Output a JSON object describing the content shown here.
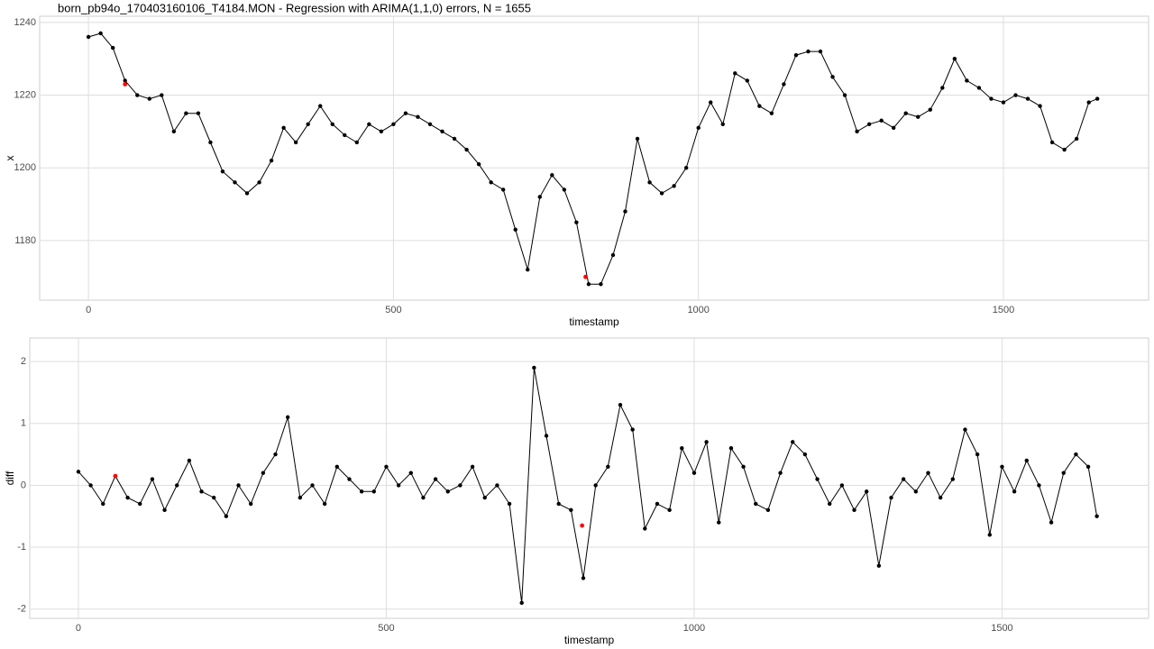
{
  "chart_data": [
    {
      "type": "line",
      "title": "born_pb94o_170403160106_T4184.MON - Regression with ARIMA(1,1,0) errors, N = 1655",
      "x_label": "timestamp",
      "y_label": "x",
      "x": [
        0,
        20,
        40,
        60,
        80,
        100,
        120,
        140,
        160,
        180,
        200,
        220,
        240,
        260,
        280,
        300,
        320,
        340,
        360,
        380,
        400,
        420,
        440,
        460,
        480,
        500,
        520,
        540,
        560,
        580,
        600,
        620,
        640,
        660,
        680,
        700,
        720,
        740,
        760,
        780,
        800,
        820,
        840,
        860,
        880,
        900,
        920,
        940,
        960,
        980,
        1000,
        1020,
        1040,
        1060,
        1080,
        1100,
        1120,
        1140,
        1160,
        1180,
        1200,
        1220,
        1240,
        1260,
        1280,
        1300,
        1320,
        1340,
        1360,
        1380,
        1400,
        1420,
        1440,
        1460,
        1480,
        1500,
        1520,
        1540,
        1560,
        1580,
        1600,
        1620,
        1640,
        1654
      ],
      "values": [
        1236,
        1237,
        1233,
        1224,
        1220,
        1219,
        1220,
        1210,
        1215,
        1215,
        1207,
        1199,
        1196,
        1193,
        1196,
        1202,
        1211,
        1207,
        1212,
        1217,
        1212,
        1209,
        1207,
        1212,
        1210,
        1212,
        1215,
        1214,
        1212,
        1210,
        1208,
        1205,
        1201,
        1196,
        1194,
        1183,
        1172,
        1192,
        1198,
        1194,
        1185,
        1168,
        1168,
        1176,
        1188,
        1208,
        1196,
        1193,
        1195,
        1200,
        1211,
        1218,
        1212,
        1226,
        1224,
        1217,
        1215,
        1223,
        1231,
        1232,
        1232,
        1225,
        1220,
        1210,
        1212,
        1213,
        1211,
        1215,
        1214,
        1216,
        1222,
        1230,
        1224,
        1222,
        1219,
        1218,
        1220,
        1219,
        1217,
        1207,
        1205,
        1208,
        1218,
        1219
      ],
      "color": "#000000",
      "highlight_x": [
        60,
        815
      ],
      "highlight_values": [
        1223,
        1170
      ],
      "highlight_color": "#ff0000",
      "xlim": [
        -80,
        1738
      ],
      "ylim": [
        1163.6,
        1241.7
      ],
      "xticks": [
        0,
        500,
        1000,
        1500
      ],
      "yticks": [
        1180,
        1200,
        1220,
        1240
      ],
      "grid": true
    },
    {
      "type": "line",
      "x_label": "timestamp",
      "y_label": "diff",
      "x": [
        0,
        20,
        40,
        60,
        80,
        100,
        120,
        140,
        160,
        180,
        200,
        220,
        240,
        260,
        280,
        300,
        320,
        340,
        360,
        380,
        400,
        420,
        440,
        460,
        480,
        500,
        520,
        540,
        560,
        580,
        600,
        620,
        640,
        660,
        680,
        700,
        720,
        740,
        760,
        780,
        800,
        820,
        840,
        860,
        880,
        900,
        920,
        940,
        960,
        980,
        1000,
        1020,
        1040,
        1060,
        1080,
        1100,
        1120,
        1140,
        1160,
        1180,
        1200,
        1220,
        1240,
        1260,
        1280,
        1300,
        1320,
        1340,
        1360,
        1380,
        1400,
        1420,
        1440,
        1460,
        1480,
        1500,
        1520,
        1540,
        1560,
        1580,
        1600,
        1620,
        1640,
        1654
      ],
      "values": [
        0.22,
        0.0,
        -0.3,
        0.15,
        -0.2,
        -0.3,
        0.1,
        -0.4,
        0.0,
        0.4,
        -0.1,
        -0.2,
        -0.5,
        0.0,
        -0.3,
        0.2,
        0.5,
        1.1,
        -0.2,
        0.0,
        -0.3,
        0.3,
        0.1,
        -0.1,
        -0.1,
        0.3,
        0.0,
        0.2,
        -0.2,
        0.1,
        -0.1,
        0.0,
        0.3,
        -0.2,
        0.0,
        -0.3,
        -1.9,
        1.9,
        0.8,
        -0.3,
        -0.4,
        -1.5,
        0.0,
        0.3,
        1.3,
        0.9,
        -0.7,
        -0.3,
        -0.4,
        0.6,
        0.2,
        0.7,
        -0.6,
        0.6,
        0.3,
        -0.3,
        -0.4,
        0.2,
        0.7,
        0.5,
        0.1,
        -0.3,
        0.0,
        -0.4,
        -0.1,
        -1.3,
        -0.2,
        0.1,
        -0.1,
        0.2,
        -0.2,
        0.1,
        0.9,
        0.5,
        -0.8,
        0.3,
        -0.1,
        0.4,
        0.0,
        -0.6,
        0.2,
        0.5,
        0.3,
        -0.5
      ],
      "color": "#000000",
      "highlight_x": [
        60,
        818
      ],
      "highlight_values": [
        0.15,
        -0.65
      ],
      "highlight_color": "#ff0000",
      "xlim": [
        -79,
        1738
      ],
      "ylim": [
        -2.15,
        2.38
      ],
      "xticks": [
        0,
        500,
        1000,
        1500
      ],
      "yticks": [
        -2,
        -1,
        0,
        1,
        2
      ],
      "grid": true
    }
  ]
}
